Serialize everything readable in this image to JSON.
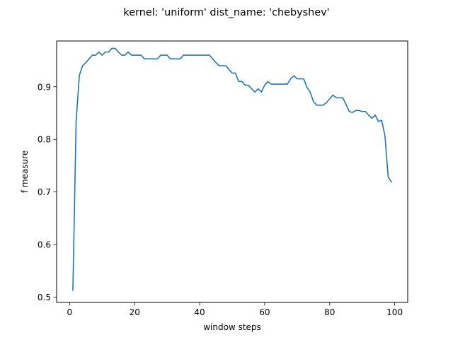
{
  "chart_data": {
    "type": "line",
    "title": "kernel: 'uniform' dist_name: 'chebyshev'",
    "xlabel": "window steps",
    "ylabel": "f measure",
    "xlim": [
      -4,
      104
    ],
    "ylim": [
      0.49,
      0.987
    ],
    "xticks": [
      0,
      20,
      40,
      60,
      80,
      100
    ],
    "yticks": [
      0.5,
      0.6,
      0.7,
      0.8,
      0.9
    ],
    "ytick_labels": [
      "0.5",
      "0.6",
      "0.7",
      "0.8",
      "0.9"
    ],
    "grid": false,
    "series": [
      {
        "color": "#1f77b4",
        "x": [
          1,
          2,
          3,
          4,
          5,
          6,
          7,
          8,
          9,
          10,
          11,
          12,
          13,
          14,
          15,
          16,
          17,
          18,
          19,
          20,
          21,
          22,
          23,
          24,
          25,
          26,
          27,
          28,
          29,
          30,
          31,
          32,
          33,
          34,
          35,
          36,
          37,
          38,
          39,
          40,
          41,
          42,
          43,
          44,
          45,
          46,
          47,
          48,
          49,
          50,
          51,
          52,
          53,
          54,
          55,
          56,
          57,
          58,
          59,
          60,
          61,
          62,
          63,
          64,
          65,
          66,
          67,
          68,
          69,
          70,
          71,
          72,
          73,
          74,
          75,
          76,
          77,
          78,
          79,
          80,
          81,
          82,
          83,
          84,
          85,
          86,
          87,
          88,
          89,
          90,
          91,
          92,
          93,
          94,
          95,
          96,
          97,
          98,
          99
        ],
        "y": [
          0.513,
          0.835,
          0.922,
          0.94,
          0.946,
          0.953,
          0.96,
          0.96,
          0.966,
          0.96,
          0.966,
          0.966,
          0.973,
          0.973,
          0.966,
          0.96,
          0.96,
          0.966,
          0.96,
          0.96,
          0.96,
          0.96,
          0.953,
          0.953,
          0.953,
          0.953,
          0.953,
          0.96,
          0.96,
          0.96,
          0.953,
          0.953,
          0.953,
          0.953,
          0.96,
          0.96,
          0.96,
          0.96,
          0.96,
          0.96,
          0.96,
          0.96,
          0.96,
          0.953,
          0.946,
          0.94,
          0.94,
          0.94,
          0.933,
          0.926,
          0.926,
          0.91,
          0.91,
          0.903,
          0.903,
          0.896,
          0.89,
          0.896,
          0.89,
          0.903,
          0.91,
          0.905,
          0.905,
          0.905,
          0.905,
          0.905,
          0.905,
          0.915,
          0.921,
          0.915,
          0.915,
          0.915,
          0.899,
          0.89,
          0.872,
          0.865,
          0.865,
          0.865,
          0.87,
          0.877,
          0.884,
          0.879,
          0.879,
          0.879,
          0.867,
          0.853,
          0.851,
          0.855,
          0.855,
          0.853,
          0.853,
          0.846,
          0.84,
          0.846,
          0.834,
          0.836,
          0.807,
          0.728,
          0.719
        ]
      }
    ]
  }
}
